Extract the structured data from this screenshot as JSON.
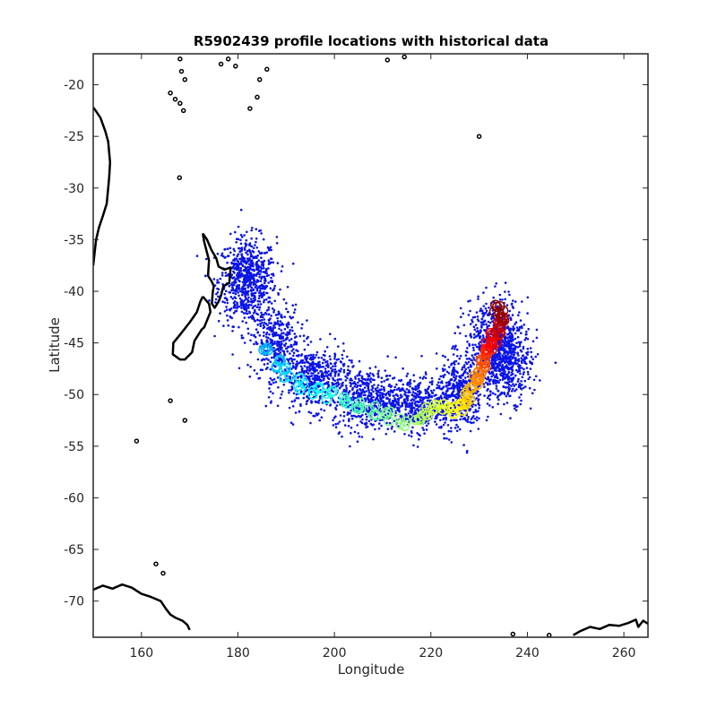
{
  "chart_data": {
    "type": "scatter",
    "title": "R5902439 profile locations with historical data",
    "xlabel": "Longitude",
    "ylabel": "Latitude",
    "xlim": [
      150,
      265
    ],
    "ylim": [
      -73.5,
      -17
    ],
    "xticks": [
      160,
      180,
      200,
      220,
      240,
      260
    ],
    "yticks": [
      -20,
      -25,
      -30,
      -35,
      -40,
      -45,
      -50,
      -55,
      -60,
      -65,
      -70
    ],
    "grid": false,
    "colors": {
      "historical": "#0a14e6",
      "coast": "#000000",
      "axis": "#262626"
    },
    "historical_cloud": [
      {
        "lon": 182,
        "lat": -39,
        "spread_lon": 5,
        "spread_lat": 3.5,
        "count": 700
      },
      {
        "lon": 188,
        "lat": -45,
        "spread_lon": 4,
        "spread_lat": 3,
        "count": 350
      },
      {
        "lon": 196,
        "lat": -48.5,
        "spread_lon": 6,
        "spread_lat": 2.5,
        "count": 500
      },
      {
        "lon": 207,
        "lat": -50.5,
        "spread_lon": 6,
        "spread_lat": 2.5,
        "count": 500
      },
      {
        "lon": 217,
        "lat": -51,
        "spread_lon": 5,
        "spread_lat": 2.2,
        "count": 420
      },
      {
        "lon": 226,
        "lat": -50,
        "spread_lon": 4,
        "spread_lat": 3,
        "count": 450
      },
      {
        "lon": 233,
        "lat": -45,
        "spread_lon": 5,
        "spread_lat": 3.5,
        "count": 600
      },
      {
        "lon": 236,
        "lat": -47,
        "spread_lon": 4,
        "spread_lat": 3,
        "count": 400
      }
    ],
    "float_profiles": {
      "colormap": "jet",
      "lon": [
        186,
        188,
        190,
        193,
        196,
        199,
        202,
        205,
        208,
        211,
        214,
        217,
        219,
        221,
        223,
        225,
        226,
        227,
        228,
        229,
        229.5,
        230,
        230.5,
        231,
        231,
        232,
        232,
        233,
        233,
        234,
        234,
        235,
        234.5,
        233.5
      ],
      "lat": [
        -45.5,
        -47,
        -48,
        -49,
        -49.5,
        -50,
        -50.5,
        -51,
        -51.5,
        -52,
        -52.5,
        -52,
        -51.5,
        -51.5,
        -51,
        -51.5,
        -51,
        -50.5,
        -50,
        -49.5,
        -48.5,
        -48,
        -47.5,
        -47,
        -46.5,
        -46,
        -45.5,
        -45,
        -44.5,
        -44,
        -43.5,
        -43,
        -42,
        -41.5
      ]
    },
    "coastlines": [
      {
        "name": "new-zealand-north",
        "lon": [
          172.7,
          173.6,
          174.5,
          175.5,
          176,
          177.2,
          178.5,
          178.2,
          177,
          176.5,
          176,
          175.2,
          174.6,
          174.8,
          175,
          174.5,
          173.8,
          174,
          173,
          172.7
        ],
        "lat": [
          -34.4,
          -35,
          -36,
          -36.8,
          -37.6,
          -37.9,
          -37.7,
          -39.2,
          -39.5,
          -40.4,
          -41,
          -41.6,
          -41.2,
          -40,
          -39.5,
          -39,
          -38.5,
          -37,
          -35.2,
          -34.4
        ]
      },
      {
        "name": "new-zealand-south",
        "lon": [
          172.7,
          174,
          174.3,
          173,
          172.5,
          171,
          170.5,
          169,
          168,
          166.5,
          166.6,
          168,
          170,
          171.5,
          172.2,
          172.7
        ],
        "lat": [
          -40.5,
          -41.2,
          -42,
          -43.5,
          -43.7,
          -44.8,
          -45.9,
          -46.6,
          -46.6,
          -46.1,
          -45,
          -44.2,
          -43,
          -42,
          -41,
          -40.5
        ]
      },
      {
        "name": "australia-east",
        "lon": [
          150,
          150.5,
          151.5,
          152.5,
          153.1,
          153.5,
          153.3,
          152.8,
          152,
          151.2,
          150.6,
          150
        ],
        "lat": [
          -22.2,
          -22.5,
          -23.2,
          -24.5,
          -25.5,
          -27.5,
          -29,
          -31.5,
          -32.7,
          -33.8,
          -35,
          -37.5
        ]
      },
      {
        "name": "antarctica-ross",
        "lon": [
          150,
          152,
          154,
          156,
          158,
          160,
          162,
          164,
          165,
          166,
          167,
          168.5,
          169.5,
          170
        ],
        "lat": [
          -68.9,
          -68.5,
          -68.8,
          -68.4,
          -68.7,
          -69.3,
          -69.6,
          -70,
          -70.7,
          -71.3,
          -71.6,
          -71.9,
          -72.3,
          -72.8
        ]
      },
      {
        "name": "antarctica-east",
        "lon": [
          249.5,
          251,
          253,
          255,
          257,
          259,
          261,
          262.5,
          263,
          264,
          265
        ],
        "lat": [
          -73.3,
          -72.9,
          -72.5,
          -72.7,
          -72.3,
          -72.4,
          -72.1,
          -71.8,
          -72.5,
          -71.9,
          -72.2
        ]
      }
    ],
    "islands": [
      {
        "lon": 168,
        "lat": -17.5
      },
      {
        "lon": 168.3,
        "lat": -18.7
      },
      {
        "lon": 169,
        "lat": -19.5
      },
      {
        "lon": 166,
        "lat": -20.8
      },
      {
        "lon": 167,
        "lat": -21.4
      },
      {
        "lon": 168,
        "lat": -21.8
      },
      {
        "lon": 168.7,
        "lat": -22.5
      },
      {
        "lon": 176.5,
        "lat": -18
      },
      {
        "lon": 178,
        "lat": -17.5
      },
      {
        "lon": 179.5,
        "lat": -18.2
      },
      {
        "lon": 184.5,
        "lat": -19.5
      },
      {
        "lon": 186,
        "lat": -18.5
      },
      {
        "lon": 184,
        "lat": -21.2
      },
      {
        "lon": 182.5,
        "lat": -22.3
      },
      {
        "lon": 211,
        "lat": -17.6
      },
      {
        "lon": 214.5,
        "lat": -17.3
      },
      {
        "lon": 230,
        "lat": -25
      },
      {
        "lon": 167.9,
        "lat": -29
      },
      {
        "lon": 166,
        "lat": -50.6
      },
      {
        "lon": 169,
        "lat": -52.5
      },
      {
        "lon": 159,
        "lat": -54.5
      },
      {
        "lon": 163,
        "lat": -66.4
      },
      {
        "lon": 164.5,
        "lat": -67.3
      },
      {
        "lon": 237,
        "lat": -73.2
      },
      {
        "lon": 244.5,
        "lat": -73.3
      }
    ]
  }
}
